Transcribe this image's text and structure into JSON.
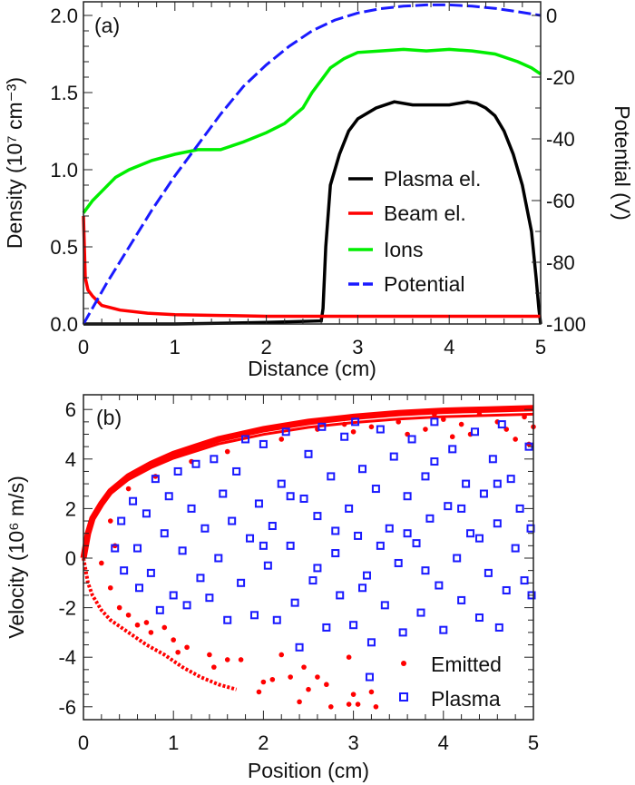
{
  "chart_data": [
    {
      "type": "line",
      "panel_label": "(a)",
      "xlabel": "Distance (cm)",
      "ylabel": "Density (10⁷ cm⁻³)",
      "y2label": "Potential (V)",
      "xlim": [
        0,
        5
      ],
      "ylim": [
        0,
        2.0
      ],
      "y2lim": [
        -100,
        0
      ],
      "xticks": [
        "0",
        "1",
        "2",
        "3",
        "4",
        "5"
      ],
      "yticks": [
        "0.0",
        "0.5",
        "1.0",
        "1.5",
        "2.0"
      ],
      "y2ticks": [
        "-100",
        "-80",
        "-60",
        "-40",
        "-20",
        "0"
      ],
      "legend_position": "center-right",
      "grid": false,
      "series": [
        {
          "name": "Plasma el.",
          "color": "#000000",
          "axis": "left",
          "style": "solid",
          "x": [
            0,
            1,
            2,
            2.6,
            2.62,
            2.65,
            2.7,
            2.8,
            2.9,
            3.0,
            3.2,
            3.4,
            3.6,
            3.8,
            4.0,
            4.2,
            4.3,
            4.4,
            4.5,
            4.6,
            4.7,
            4.8,
            4.9,
            4.95,
            4.98,
            5.0
          ],
          "y": [
            0,
            0,
            0.01,
            0.02,
            0.1,
            0.5,
            0.9,
            1.1,
            1.25,
            1.33,
            1.4,
            1.44,
            1.42,
            1.42,
            1.42,
            1.44,
            1.43,
            1.4,
            1.35,
            1.25,
            1.1,
            0.9,
            0.6,
            0.3,
            0.1,
            0
          ]
        },
        {
          "name": "Beam el.",
          "color": "#ff0000",
          "axis": "left",
          "style": "solid",
          "x": [
            0,
            0.02,
            0.05,
            0.1,
            0.2,
            0.4,
            0.7,
            1.0,
            1.5,
            2.0,
            3.0,
            4.0,
            5.0
          ],
          "y": [
            0.7,
            0.3,
            0.22,
            0.18,
            0.12,
            0.09,
            0.07,
            0.06,
            0.055,
            0.05,
            0.05,
            0.05,
            0.05
          ]
        },
        {
          "name": "Ions",
          "color": "#00ee00",
          "axis": "left",
          "style": "solid",
          "x": [
            0,
            0.1,
            0.2,
            0.35,
            0.5,
            0.75,
            1.0,
            1.25,
            1.5,
            1.75,
            2.0,
            2.2,
            2.4,
            2.5,
            2.6,
            2.7,
            2.85,
            3.0,
            3.25,
            3.5,
            3.75,
            4.0,
            4.25,
            4.5,
            4.75,
            4.9,
            5.0
          ],
          "y": [
            0.72,
            0.8,
            0.86,
            0.95,
            1.0,
            1.06,
            1.1,
            1.13,
            1.13,
            1.18,
            1.24,
            1.3,
            1.4,
            1.5,
            1.58,
            1.66,
            1.72,
            1.76,
            1.77,
            1.78,
            1.77,
            1.78,
            1.77,
            1.75,
            1.7,
            1.66,
            1.62
          ]
        },
        {
          "name": "Potential",
          "color": "#1a1aff",
          "axis": "right",
          "style": "dashed",
          "x": [
            0,
            0.25,
            0.5,
            0.75,
            1.0,
            1.25,
            1.5,
            1.75,
            2.0,
            2.25,
            2.5,
            2.75,
            3.0,
            3.25,
            3.5,
            3.75,
            4.0,
            4.25,
            4.5,
            4.75,
            5.0
          ],
          "y": [
            -100,
            -87,
            -75,
            -63,
            -52,
            -42,
            -32,
            -23,
            -16,
            -10,
            -5,
            -1.5,
            0.8,
            2.2,
            3,
            3.4,
            3.4,
            3,
            2.3,
            1.2,
            0
          ]
        }
      ]
    },
    {
      "type": "scatter",
      "panel_label": "(b)",
      "xlabel": "Position (cm)",
      "ylabel": "Velocity (10⁶ m/s)",
      "xlim": [
        0,
        5
      ],
      "ylim": [
        -6.5,
        6.5
      ],
      "xticks": [
        "0",
        "1",
        "2",
        "3",
        "4",
        "5"
      ],
      "yticks": [
        "-6",
        "-4",
        "-2",
        "0",
        "2",
        "4",
        "6"
      ],
      "legend_position": "bottom-right",
      "grid": false,
      "series": [
        {
          "name": "Emitted",
          "color": "#ff0000",
          "marker": "dot",
          "envelope_upper": [
            [
              0,
              0
            ],
            [
              0.05,
              1
            ],
            [
              0.1,
              1.6
            ],
            [
              0.2,
              2.2
            ],
            [
              0.3,
              2.7
            ],
            [
              0.5,
              3.3
            ],
            [
              0.75,
              3.8
            ],
            [
              1,
              4.2
            ],
            [
              1.25,
              4.5
            ],
            [
              1.5,
              4.8
            ],
            [
              2,
              5.2
            ],
            [
              2.5,
              5.5
            ],
            [
              3,
              5.7
            ],
            [
              3.5,
              5.85
            ],
            [
              4,
              5.95
            ],
            [
              4.5,
              6.0
            ],
            [
              5,
              6.05
            ]
          ],
          "envelope_lower": [
            [
              0,
              0
            ],
            [
              0.05,
              -1
            ],
            [
              0.1,
              -1.5
            ],
            [
              0.2,
              -2.1
            ],
            [
              0.3,
              -2.5
            ],
            [
              0.5,
              -3
            ],
            [
              0.7,
              -3.5
            ],
            [
              0.9,
              -3.9
            ],
            [
              1.1,
              -4.4
            ],
            [
              1.3,
              -4.8
            ],
            [
              1.5,
              -5.1
            ],
            [
              1.7,
              -5.3
            ]
          ],
          "points": [
            [
              0.3,
              1.5
            ],
            [
              0.35,
              0.5
            ],
            [
              0.2,
              -0.2
            ],
            [
              0.3,
              -1.2
            ],
            [
              0.4,
              -2
            ],
            [
              0.5,
              -2.3
            ],
            [
              0.6,
              -2.7
            ],
            [
              0.7,
              -2.6
            ],
            [
              0.75,
              -3
            ],
            [
              0.9,
              -2.8
            ],
            [
              1,
              -3.3
            ],
            [
              1.05,
              -3.8
            ],
            [
              1.15,
              -3.6
            ],
            [
              1.4,
              -3.9
            ],
            [
              1.45,
              -4.4
            ],
            [
              1.6,
              -4.1
            ],
            [
              1.75,
              -4.1
            ],
            [
              2.0,
              -5
            ],
            [
              2.1,
              -4.9
            ],
            [
              2.2,
              -3.9
            ],
            [
              2.3,
              -4.8
            ],
            [
              2.45,
              -4.4
            ],
            [
              2.5,
              -5.3
            ],
            [
              2.4,
              -5.8
            ],
            [
              2.6,
              -4.8
            ],
            [
              2.7,
              -5.1
            ],
            [
              2.75,
              -6
            ],
            [
              2.95,
              -5.9
            ],
            [
              3.0,
              -5.5
            ],
            [
              3.05,
              -5.9
            ],
            [
              3.2,
              -5.4
            ],
            [
              3.25,
              -6
            ],
            [
              2.95,
              -4
            ],
            [
              1.95,
              -5.4
            ],
            [
              3.2,
              5.3
            ],
            [
              3.5,
              5.5
            ],
            [
              3.8,
              5.2
            ],
            [
              4.0,
              5.6
            ],
            [
              4.3,
              5.0
            ],
            [
              4.6,
              5.5
            ],
            [
              4.8,
              4.8
            ],
            [
              5,
              5.3
            ],
            [
              4.9,
              5.7
            ],
            [
              4.2,
              5.4
            ],
            [
              3.6,
              5.0
            ],
            [
              2.9,
              5.4
            ],
            [
              2.6,
              5.2
            ],
            [
              2.2,
              4.8
            ],
            [
              1.6,
              4.3
            ],
            [
              1.2,
              3.9
            ],
            [
              0.8,
              3.3
            ],
            [
              0.5,
              2.8
            ],
            [
              3.4,
              5.8
            ],
            [
              3.9,
              5.8
            ],
            [
              4.4,
              5.8
            ],
            [
              4.7,
              5.2
            ],
            [
              4.95,
              4.6
            ],
            [
              3.0,
              5.1
            ],
            [
              4.1,
              4.9
            ]
          ]
        },
        {
          "name": "Plasma",
          "color": "#1a1aff",
          "marker": "open-square",
          "points": [
            [
              0.35,
              0.4
            ],
            [
              0.42,
              1.5
            ],
            [
              0.45,
              -0.5
            ],
            [
              0.55,
              2.3
            ],
            [
              0.6,
              0.4
            ],
            [
              0.62,
              -1.2
            ],
            [
              0.7,
              1.8
            ],
            [
              0.75,
              -0.6
            ],
            [
              0.8,
              3.2
            ],
            [
              0.85,
              -2.1
            ],
            [
              0.9,
              1.0
            ],
            [
              0.95,
              2.5
            ],
            [
              1.0,
              -1.5
            ],
            [
              1.05,
              3.5
            ],
            [
              1.1,
              0.3
            ],
            [
              1.15,
              -1.9
            ],
            [
              1.2,
              2.0
            ],
            [
              1.25,
              3.8
            ],
            [
              1.3,
              -0.8
            ],
            [
              1.35,
              1.2
            ],
            [
              1.4,
              -1.6
            ],
            [
              1.45,
              4.0
            ],
            [
              1.5,
              0.0
            ],
            [
              1.55,
              2.6
            ],
            [
              1.6,
              -2.5
            ],
            [
              1.65,
              1.5
            ],
            [
              1.7,
              3.5
            ],
            [
              1.75,
              -1.0
            ],
            [
              1.8,
              4.8
            ],
            [
              1.85,
              0.8
            ],
            [
              1.9,
              -2.3
            ],
            [
              1.95,
              2.2
            ],
            [
              2.0,
              4.6
            ],
            [
              2.05,
              -0.3
            ],
            [
              2.1,
              1.3
            ],
            [
              2.15,
              -2.5
            ],
            [
              2.2,
              3.0
            ],
            [
              2.25,
              5.1
            ],
            [
              2.3,
              0.5
            ],
            [
              2.35,
              -1.8
            ],
            [
              2.4,
              -3.6
            ],
            [
              2.45,
              2.4
            ],
            [
              2.5,
              4.2
            ],
            [
              2.55,
              -0.9
            ],
            [
              2.6,
              1.7
            ],
            [
              2.65,
              5.3
            ],
            [
              2.7,
              -2.8
            ],
            [
              2.75,
              3.3
            ],
            [
              2.8,
              0.2
            ],
            [
              2.85,
              -1.5
            ],
            [
              2.9,
              4.9
            ],
            [
              2.95,
              2.0
            ],
            [
              3.0,
              -2.7
            ],
            [
              3.02,
              5.5
            ],
            [
              3.05,
              0.9
            ],
            [
              3.1,
              3.6
            ],
            [
              3.15,
              -0.7
            ],
            [
              3.18,
              -4.8
            ],
            [
              3.2,
              -3.4
            ],
            [
              3.25,
              2.8
            ],
            [
              3.3,
              5.2
            ],
            [
              3.35,
              -1.9
            ],
            [
              3.4,
              1.2
            ],
            [
              3.45,
              4.1
            ],
            [
              3.5,
              -0.2
            ],
            [
              3.55,
              -3.0
            ],
            [
              3.6,
              2.5
            ],
            [
              3.65,
              4.8
            ],
            [
              3.7,
              0.6
            ],
            [
              3.75,
              -2.2
            ],
            [
              3.8,
              3.3
            ],
            [
              3.85,
              1.6
            ],
            [
              3.9,
              5.5
            ],
            [
              3.95,
              -1.1
            ],
            [
              4.0,
              -2.9
            ],
            [
              4.05,
              2.1
            ],
            [
              4.1,
              4.4
            ],
            [
              4.15,
              0.0
            ],
            [
              4.2,
              -1.7
            ],
            [
              4.25,
              3.0
            ],
            [
              4.3,
              1.0
            ],
            [
              4.35,
              5.1
            ],
            [
              4.4,
              -2.4
            ],
            [
              4.45,
              2.6
            ],
            [
              4.5,
              -0.6
            ],
            [
              4.55,
              4.0
            ],
            [
              4.6,
              1.4
            ],
            [
              4.62,
              -2.8
            ],
            [
              4.65,
              5.4
            ],
            [
              4.7,
              -1.3
            ],
            [
              4.75,
              3.2
            ],
            [
              4.8,
              0.4
            ],
            [
              4.85,
              2.0
            ],
            [
              4.9,
              -0.9
            ],
            [
              4.95,
              4.5
            ],
            [
              4.97,
              1.2
            ],
            [
              4.98,
              -1.5
            ],
            [
              3.3,
              0.5
            ],
            [
              3.8,
              -0.5
            ],
            [
              2.3,
              2.5
            ],
            [
              4.2,
              2.0
            ],
            [
              3.6,
              1.0
            ],
            [
              2.8,
              1.1
            ],
            [
              4.6,
              3.0
            ],
            [
              3.1,
              -1.2
            ],
            [
              2.0,
              0.5
            ],
            [
              4.4,
              0.8
            ],
            [
              3.9,
              3.9
            ],
            [
              2.6,
              -0.4
            ]
          ]
        }
      ]
    }
  ]
}
